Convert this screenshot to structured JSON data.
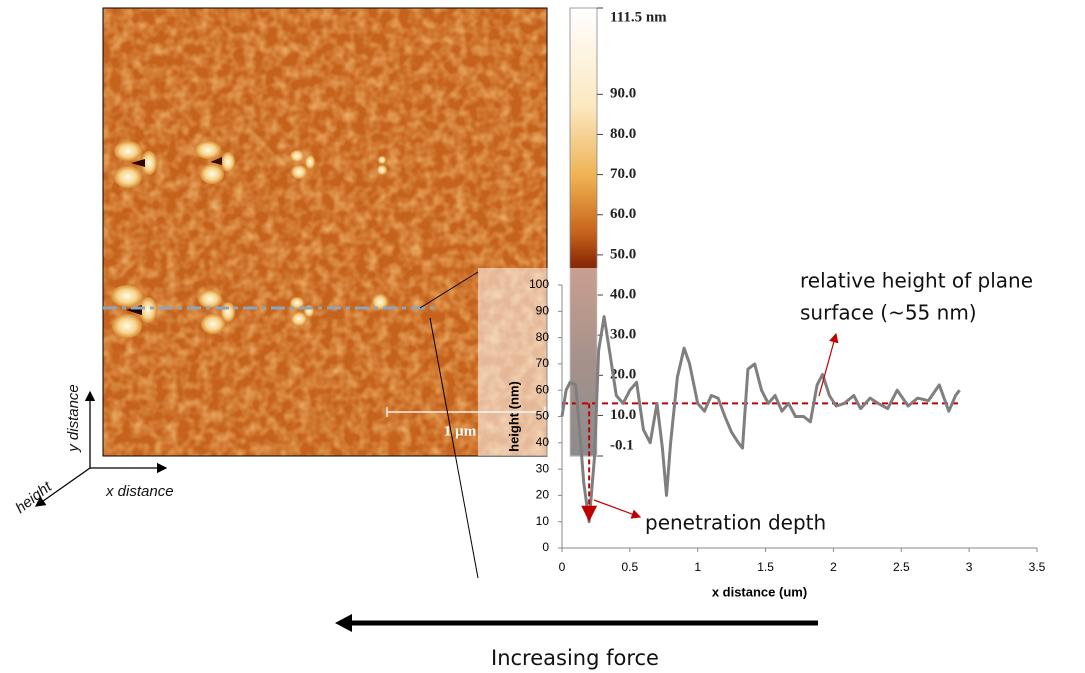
{
  "chart_data": {
    "type": "line",
    "x_label": "x distance (um)",
    "y_label": "height (nm)",
    "x": [
      0,
      0.03,
      0.06,
      0.1,
      0.13,
      0.16,
      0.2,
      0.24,
      0.27,
      0.31,
      0.35,
      0.4,
      0.45,
      0.5,
      0.55,
      0.6,
      0.65,
      0.7,
      0.74,
      0.77,
      0.8,
      0.85,
      0.9,
      0.94,
      1.0,
      1.05,
      1.1,
      1.15,
      1.2,
      1.25,
      1.3,
      1.33,
      1.37,
      1.42,
      1.47,
      1.52,
      1.57,
      1.62,
      1.67,
      1.72,
      1.78,
      1.83,
      1.88,
      1.92,
      1.97,
      2.02,
      2.08,
      2.15,
      2.2,
      2.27,
      2.33,
      2.4,
      2.47,
      2.55,
      2.62,
      2.7,
      2.78,
      2.85,
      2.9,
      2.93
    ],
    "series": [
      {
        "color": "#7f7f7f",
        "values": [
          50,
          60,
          63,
          62,
          45,
          25,
          10,
          35,
          75,
          88,
          75,
          58,
          55,
          60,
          63,
          45,
          40,
          55,
          38,
          20,
          40,
          65,
          76,
          70,
          55,
          52,
          58,
          57,
          50,
          44,
          40,
          38,
          68,
          70,
          60,
          55,
          58,
          52,
          55,
          50,
          50,
          48,
          62,
          66,
          58,
          54,
          55,
          58,
          53,
          57,
          55,
          53,
          60,
          54,
          57,
          56,
          62,
          52,
          58,
          60
        ]
      }
    ],
    "reference_line": {
      "value": 55,
      "color": "#c00000"
    },
    "annotations": [
      "relative height of plane",
      "surface (~55 nm)",
      "penetration depth"
    ],
    "xlim": [
      0,
      3.5
    ],
    "xticks": [
      0,
      0.5,
      1,
      1.5,
      2,
      2.5,
      3,
      3.5
    ],
    "ylim": [
      0,
      100
    ],
    "yticks": [
      0,
      10,
      20,
      30,
      40,
      50,
      60,
      70,
      80,
      90,
      100
    ]
  },
  "image": {
    "scale_bar_label": "1 µm",
    "axes": {
      "y": "y distance",
      "x": "x distance",
      "z": "height"
    },
    "colorbar": {
      "clim": [
        -0.1,
        111.5
      ],
      "ticks": [
        {
          "value": 111.5,
          "label": "111.5 nm"
        },
        {
          "value": 90,
          "label": "90.0"
        },
        {
          "value": 80,
          "label": "80.0"
        },
        {
          "value": 70,
          "label": "70.0"
        },
        {
          "value": 60,
          "label": "60.0"
        },
        {
          "value": 50,
          "label": "50.0"
        },
        {
          "value": 40,
          "label": "40.0"
        },
        {
          "value": 30,
          "label": "30.0"
        },
        {
          "value": 20,
          "label": "20.0"
        },
        {
          "value": 10,
          "label": "10.0"
        },
        -0.1
      ]
    }
  },
  "caption": "Increasing force"
}
